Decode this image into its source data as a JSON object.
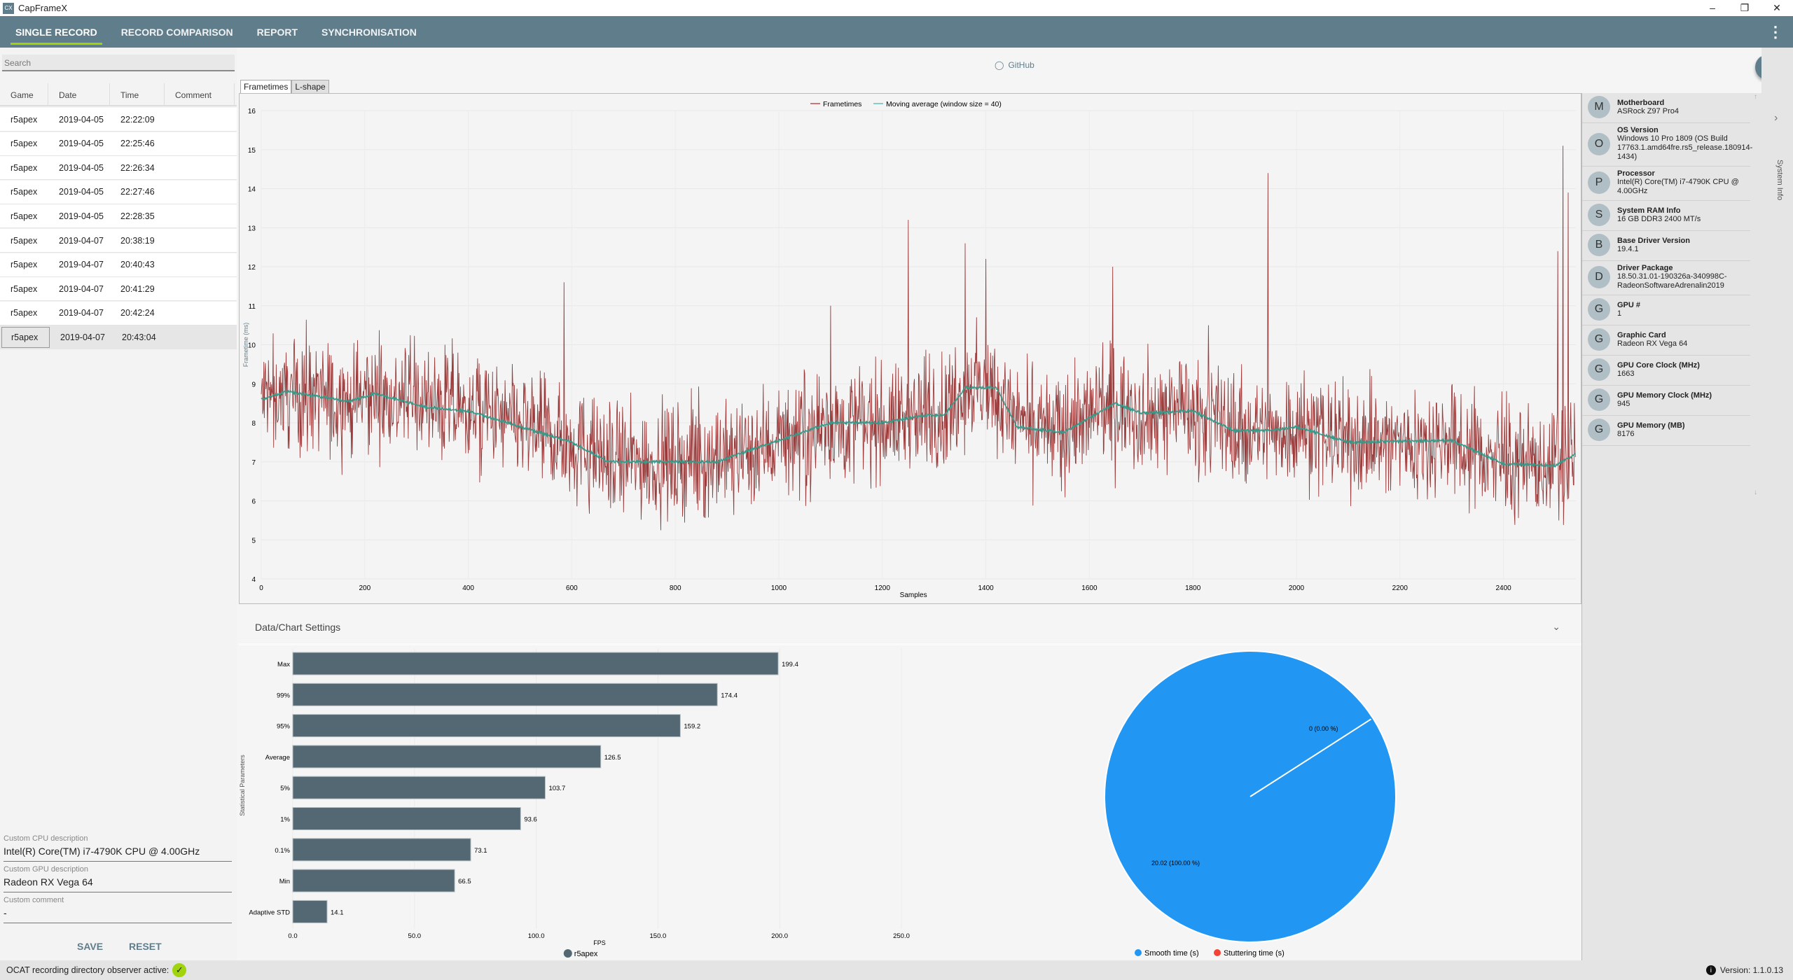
{
  "window": {
    "title": "CapFrameX",
    "min": "–",
    "max": "❐",
    "close": "✕"
  },
  "nav": {
    "tabs": [
      "SINGLE RECORD",
      "RECORD COMPARISON",
      "REPORT",
      "SYNCHRONISATION"
    ],
    "more": "⋮"
  },
  "search": {
    "placeholder": "Search"
  },
  "table": {
    "headers": [
      "Game",
      "Date",
      "Time",
      "Comment"
    ],
    "rows": [
      [
        "r5apex",
        "2019-04-05",
        "22:22:09",
        ""
      ],
      [
        "r5apex",
        "2019-04-05",
        "22:25:46",
        ""
      ],
      [
        "r5apex",
        "2019-04-05",
        "22:26:34",
        ""
      ],
      [
        "r5apex",
        "2019-04-05",
        "22:27:46",
        ""
      ],
      [
        "r5apex",
        "2019-04-05",
        "22:28:35",
        ""
      ],
      [
        "r5apex",
        "2019-04-07",
        "20:38:19",
        ""
      ],
      [
        "r5apex",
        "2019-04-07",
        "20:40:43",
        ""
      ],
      [
        "r5apex",
        "2019-04-07",
        "20:41:29",
        ""
      ],
      [
        "r5apex",
        "2019-04-07",
        "20:42:24",
        ""
      ],
      [
        "r5apex",
        "2019-04-07",
        "20:43:04",
        ""
      ]
    ],
    "selected_index": 9
  },
  "custom": {
    "cpu_label": "Custom CPU description",
    "cpu_value": "Intel(R) Core(TM) i7-4790K CPU @ 4.00GHz",
    "gpu_label": "Custom GPU description",
    "gpu_value": "Radeon RX Vega 64",
    "comment_label": "Custom comment",
    "comment_value": "-",
    "save": "SAVE",
    "reset": "RESET"
  },
  "github": "GitHub",
  "chart_tabs": [
    "Frametimes",
    "L-shape"
  ],
  "settings_header": "Data/Chart Settings",
  "system_info": {
    "label": "System Info",
    "items": [
      {
        "initial": "M",
        "title": "Motherboard",
        "value": "ASRock Z97 Pro4"
      },
      {
        "initial": "O",
        "title": "OS Version",
        "value": "Windows 10 Pro 1809 (OS Build 17763.1.amd64fre.rs5_release.180914-1434)"
      },
      {
        "initial": "P",
        "title": "Processor",
        "value": "Intel(R) Core(TM) i7-4790K CPU @ 4.00GHz"
      },
      {
        "initial": "S",
        "title": "System RAM Info",
        "value": "16 GB DDR3 2400 MT/s"
      },
      {
        "initial": "B",
        "title": "Base Driver Version",
        "value": "19.4.1"
      },
      {
        "initial": "D",
        "title": "Driver Package",
        "value": "18.50.31.01-190326a-340998C-RadeonSoftwareAdrenalin2019"
      },
      {
        "initial": "G",
        "title": "GPU #",
        "value": "1"
      },
      {
        "initial": "G",
        "title": "Graphic Card",
        "value": "Radeon RX Vega 64"
      },
      {
        "initial": "G",
        "title": "GPU Core Clock (MHz)",
        "value": "1663"
      },
      {
        "initial": "G",
        "title": "GPU Memory Clock (MHz)",
        "value": "945"
      },
      {
        "initial": "G",
        "title": "GPU Memory (MB)",
        "value": "8176"
      }
    ]
  },
  "status": {
    "text": "OCAT recording directory observer active:",
    "check": "✓",
    "version": "Version: 1.1.0.13",
    "info": "i"
  },
  "colors": {
    "nav": "#607d8b",
    "accent": "#a4d300",
    "frametime": "#8b1a1a",
    "moving_avg": "#3a9a8a",
    "bar": "#536872",
    "smooth": "#2196f3",
    "stutter": "#f44336"
  },
  "chart_data": [
    {
      "type": "line",
      "title": "",
      "xlabel": "Samples",
      "ylabel": "Frametime (ms)",
      "xlim": [
        0,
        2540
      ],
      "ylim": [
        4,
        16
      ],
      "xticks": [
        "0",
        "200",
        "400",
        "600",
        "800",
        "1000",
        "1200",
        "1400",
        "1600",
        "1800",
        "2000",
        "2200",
        "2400"
      ],
      "yticks": [
        "4",
        "5",
        "6",
        "7",
        "8",
        "9",
        "10",
        "11",
        "12",
        "13",
        "14",
        "15",
        "16"
      ],
      "legend": [
        "Frametimes",
        "Moving average (window size = 40)"
      ],
      "legend_position": "top-center",
      "sample_count": 2540,
      "moving_average_points": [
        [
          0,
          8.6
        ],
        [
          50,
          8.8
        ],
        [
          170,
          8.55
        ],
        [
          220,
          8.75
        ],
        [
          320,
          8.4
        ],
        [
          400,
          8.3
        ],
        [
          500,
          7.9
        ],
        [
          600,
          7.5
        ],
        [
          670,
          7.0
        ],
        [
          880,
          7.0
        ],
        [
          1000,
          7.55
        ],
        [
          1100,
          8.0
        ],
        [
          1200,
          8.0
        ],
        [
          1290,
          8.2
        ],
        [
          1320,
          8.2
        ],
        [
          1360,
          8.9
        ],
        [
          1420,
          8.9
        ],
        [
          1460,
          7.9
        ],
        [
          1550,
          7.75
        ],
        [
          1650,
          8.5
        ],
        [
          1700,
          8.25
        ],
        [
          1800,
          8.3
        ],
        [
          1880,
          7.8
        ],
        [
          1950,
          7.8
        ],
        [
          2000,
          7.9
        ],
        [
          2100,
          7.5
        ],
        [
          2300,
          7.55
        ],
        [
          2400,
          6.95
        ],
        [
          2500,
          6.9
        ],
        [
          2540,
          7.2
        ]
      ],
      "spikes": [
        [
          585,
          11.6
        ],
        [
          1100,
          11.0
        ],
        [
          1250,
          13.2
        ],
        [
          1360,
          12.6
        ],
        [
          1400,
          12.2
        ],
        [
          1645,
          12.0
        ],
        [
          1830,
          10.5
        ],
        [
          1945,
          14.4
        ],
        [
          2505,
          12.4
        ],
        [
          2515,
          15.1
        ],
        [
          2525,
          13.9
        ]
      ],
      "noise_ms": 1.1
    },
    {
      "type": "bar",
      "orientation": "horizontal",
      "ylabel": "Statistical Parameters",
      "xlabel": "FPS",
      "xlim": [
        0,
        250
      ],
      "xticks": [
        "0.0",
        "50.0",
        "100.0",
        "150.0",
        "200.0",
        "250.0"
      ],
      "categories": [
        "Max",
        "99%",
        "95%",
        "Average",
        "5%",
        "1%",
        "0.1%",
        "Min",
        "Adaptive STD"
      ],
      "series": [
        {
          "name": "r5apex",
          "values": [
            199.4,
            174.4,
            159.2,
            126.5,
            103.7,
            93.6,
            73.1,
            66.5,
            14.1
          ],
          "labels": [
            "199.4",
            "174.4",
            "159.2",
            "126.5",
            "103.7",
            "93.6",
            "73.1",
            "66.5",
            "14.1"
          ]
        }
      ],
      "legend": [
        "r5apex"
      ],
      "legend_position": "bottom"
    },
    {
      "type": "pie",
      "slices": [
        {
          "name": "Smooth time (s)",
          "value": 20.02,
          "label": "20.02 (100.00 %)"
        },
        {
          "name": "Stuttering time (s)",
          "value": 0,
          "label": "0 (0.00 %)"
        }
      ],
      "legend_position": "bottom"
    }
  ]
}
